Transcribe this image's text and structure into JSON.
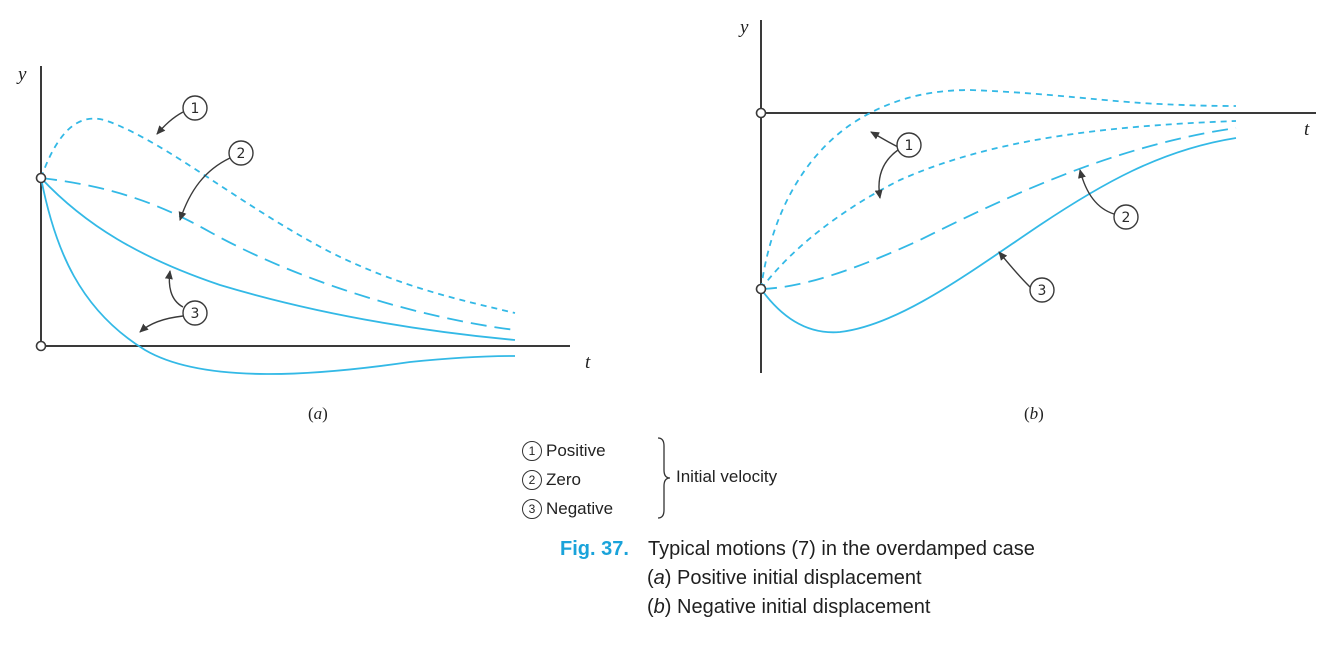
{
  "panels": [
    {
      "label_open": "(",
      "letter": "a",
      "label_close": ")",
      "y_axis": "y",
      "x_axis": "t",
      "callouts": [
        "1",
        "2",
        "3"
      ]
    },
    {
      "label_open": "(",
      "letter": "b",
      "label_close": ")",
      "y_axis": "y",
      "x_axis": "t",
      "callouts": [
        "1",
        "2",
        "3"
      ]
    }
  ],
  "legend": {
    "items": [
      {
        "number": "1",
        "label": "Positive"
      },
      {
        "number": "2",
        "label": "Zero"
      },
      {
        "number": "3",
        "label": "Negative"
      }
    ],
    "group_label": "Initial velocity"
  },
  "caption": {
    "fig_label": "Fig. 37.",
    "title": "Typical motions (7) in the overdamped case",
    "lines": [
      {
        "letter": "a",
        "text": "Positive initial displacement"
      },
      {
        "letter": "b",
        "text": "Negative initial displacement"
      }
    ]
  },
  "colors": {
    "curve": "#33b9e6",
    "axis": "#3a3a3a",
    "fig_label": "#1aa3da"
  }
}
